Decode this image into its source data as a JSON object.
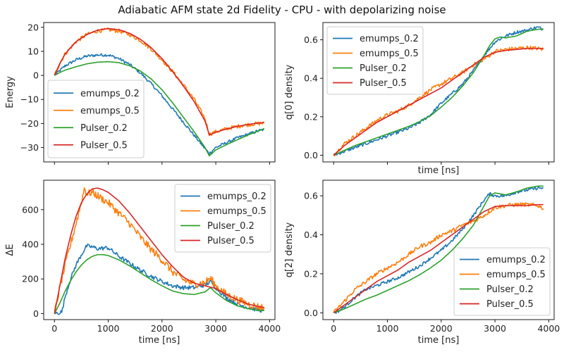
{
  "figure": {
    "title": "Adiabatic AFM state 2d Fidelity - CPU - with depolarizing noise"
  },
  "chart_data": [
    {
      "type": "line",
      "id": "energy",
      "title": "",
      "xlabel": "",
      "ylabel": "Energy",
      "xlim": [
        -200,
        4100
      ],
      "ylim": [
        -36,
        22
      ],
      "xticks": [
        0,
        1000,
        2000,
        3000,
        4000
      ],
      "xtick_labels": [],
      "yticks": [
        -30,
        -20,
        -10,
        0,
        10,
        20
      ],
      "ytick_labels": [
        "−30",
        "−20",
        "−10",
        "0",
        "10",
        "20"
      ],
      "legend": "lower-left",
      "series": [
        {
          "name": "emumps_0.2",
          "color": "#1f77b4",
          "noise": 0.6,
          "x": [
            0,
            100,
            200,
            400,
            600,
            800,
            1000,
            1200,
            1400,
            1600,
            1800,
            2000,
            2200,
            2400,
            2600,
            2800,
            2880,
            3000,
            3200,
            3400,
            3600,
            3800,
            3900
          ],
          "y": [
            0,
            2,
            4,
            6.5,
            8,
            8.5,
            8.5,
            7,
            4.5,
            1,
            -3.5,
            -8.5,
            -14,
            -19.5,
            -25,
            -30.5,
            -32.5,
            -30,
            -28,
            -26,
            -24.5,
            -23,
            -22.5
          ]
        },
        {
          "name": "emumps_0.5",
          "color": "#ff7f0e",
          "noise": 0.8,
          "x": [
            0,
            100,
            200,
            400,
            600,
            800,
            1000,
            1200,
            1400,
            1600,
            1800,
            2000,
            2200,
            2400,
            2600,
            2800,
            2880,
            3000,
            3200,
            3400,
            3600,
            3800,
            3900
          ],
          "y": [
            0,
            5,
            9,
            14,
            17,
            18.5,
            19,
            18.5,
            17,
            14.5,
            11,
            6.5,
            1.5,
            -4,
            -10,
            -18,
            -24.5,
            -23.5,
            -22.2,
            -21.2,
            -20.5,
            -20,
            -19.8
          ]
        },
        {
          "name": "Pulser_0.2",
          "color": "#2ca02c",
          "noise": 0,
          "x": [
            0,
            100,
            200,
            400,
            600,
            800,
            1000,
            1200,
            1400,
            1600,
            1800,
            2000,
            2200,
            2400,
            2600,
            2800,
            2880,
            3000,
            3200,
            3400,
            3600,
            3800,
            3900
          ],
          "y": [
            0,
            1.2,
            2.2,
            3.6,
            4.8,
            5.5,
            5.7,
            5.3,
            4,
            1.8,
            -1.5,
            -6,
            -11.5,
            -17.5,
            -23.5,
            -30,
            -33.5,
            -31,
            -28.8,
            -26.8,
            -24.8,
            -23,
            -22.2
          ]
        },
        {
          "name": "Pulser_0.5",
          "color": "#d62728",
          "noise": 0,
          "x": [
            0,
            100,
            200,
            400,
            600,
            800,
            1000,
            1200,
            1400,
            1600,
            1800,
            2000,
            2200,
            2400,
            2600,
            2800,
            2880,
            3000,
            3200,
            3400,
            3600,
            3800,
            3900
          ],
          "y": [
            0,
            5,
            9,
            14,
            17,
            18.8,
            19.5,
            19,
            17.5,
            15,
            11.5,
            7,
            1.5,
            -4.5,
            -11,
            -19,
            -24.8,
            -23.6,
            -22.3,
            -21.2,
            -20.4,
            -19.8,
            -19.6
          ]
        }
      ]
    },
    {
      "type": "line",
      "id": "q0",
      "title": "",
      "xlabel": "time [ns]",
      "ylabel": "q[0] density",
      "xlim": [
        -200,
        4100
      ],
      "ylim": [
        -0.035,
        0.69
      ],
      "xticks": [
        0,
        1000,
        2000,
        3000,
        4000
      ],
      "xtick_labels": [],
      "yticks": [
        0.0,
        0.2,
        0.4,
        0.6
      ],
      "ytick_labels": [
        "0.0",
        "0.2",
        "0.4",
        "0.6"
      ],
      "legend": "upper-left",
      "series": [
        {
          "name": "emumps_0.2",
          "color": "#1f77b4",
          "noise": 0.008,
          "x": [
            0,
            200,
            400,
            600,
            800,
            1000,
            1200,
            1400,
            1600,
            1800,
            2000,
            2200,
            2400,
            2600,
            2800,
            3000,
            3200,
            3400,
            3600,
            3700,
            3800,
            3900
          ],
          "y": [
            0,
            0.02,
            0.04,
            0.06,
            0.08,
            0.1,
            0.12,
            0.14,
            0.17,
            0.21,
            0.27,
            0.32,
            0.37,
            0.44,
            0.52,
            0.59,
            0.62,
            0.64,
            0.65,
            0.66,
            0.665,
            0.655
          ]
        },
        {
          "name": "emumps_0.5",
          "color": "#ff7f0e",
          "noise": 0.01,
          "x": [
            0,
            200,
            400,
            600,
            800,
            1000,
            1200,
            1400,
            1600,
            1800,
            2000,
            2200,
            2400,
            2600,
            2800,
            3000,
            3200,
            3400,
            3600,
            3800,
            3900
          ],
          "y": [
            0,
            0.06,
            0.1,
            0.14,
            0.18,
            0.21,
            0.23,
            0.26,
            0.3,
            0.34,
            0.37,
            0.4,
            0.43,
            0.47,
            0.5,
            0.54,
            0.55,
            0.555,
            0.56,
            0.555,
            0.55
          ]
        },
        {
          "name": "Pulser_0.2",
          "color": "#2ca02c",
          "noise": 0,
          "x": [
            0,
            200,
            400,
            600,
            800,
            1000,
            1200,
            1400,
            1600,
            1800,
            2000,
            2200,
            2400,
            2600,
            2800,
            2900,
            3000,
            3100,
            3200,
            3400,
            3600,
            3800,
            3900
          ],
          "y": [
            0,
            0.025,
            0.05,
            0.07,
            0.09,
            0.11,
            0.13,
            0.15,
            0.175,
            0.205,
            0.25,
            0.3,
            0.36,
            0.43,
            0.52,
            0.57,
            0.605,
            0.615,
            0.61,
            0.62,
            0.645,
            0.655,
            0.655
          ]
        },
        {
          "name": "Pulser_0.5",
          "color": "#d62728",
          "noise": 0,
          "x": [
            0,
            200,
            400,
            600,
            800,
            1000,
            1200,
            1400,
            1600,
            1800,
            2000,
            2200,
            2400,
            2600,
            2800,
            3000,
            3200,
            3400,
            3600,
            3800,
            3900
          ],
          "y": [
            0,
            0.05,
            0.09,
            0.13,
            0.17,
            0.2,
            0.23,
            0.26,
            0.29,
            0.32,
            0.35,
            0.39,
            0.43,
            0.47,
            0.51,
            0.535,
            0.545,
            0.55,
            0.555,
            0.555,
            0.555
          ]
        }
      ]
    },
    {
      "type": "line",
      "id": "deltaE",
      "title": "",
      "xlabel": "time [ns]",
      "ylabel": "ΔE",
      "xlim": [
        -200,
        4100
      ],
      "ylim": [
        -35,
        770
      ],
      "xticks": [
        0,
        1000,
        2000,
        3000,
        4000
      ],
      "xtick_labels": [
        "0",
        "1000",
        "2000",
        "3000",
        "4000"
      ],
      "yticks": [
        0,
        200,
        400,
        600
      ],
      "ytick_labels": [
        "0",
        "200",
        "400",
        "600"
      ],
      "legend": "upper-right",
      "series": [
        {
          "name": "emumps_0.2",
          "color": "#1f77b4",
          "noise": 12,
          "x": [
            0,
            80,
            140,
            200,
            300,
            400,
            500,
            600,
            700,
            800,
            1000,
            1200,
            1400,
            1600,
            1800,
            2000,
            2200,
            2400,
            2600,
            2800,
            2900,
            3000,
            3200,
            3400,
            3600,
            3800,
            3900
          ],
          "y": [
            0,
            5,
            10,
            100,
            200,
            280,
            340,
            390,
            385,
            375,
            380,
            330,
            290,
            250,
            215,
            185,
            160,
            150,
            150,
            165,
            185,
            150,
            90,
            55,
            35,
            20,
            18
          ]
        },
        {
          "name": "emumps_0.5",
          "color": "#ff7f0e",
          "noise": 22,
          "x": [
            0,
            100,
            200,
            300,
            400,
            500,
            560,
            600,
            700,
            800,
            1000,
            1200,
            1400,
            1600,
            1800,
            2000,
            2200,
            2400,
            2600,
            2800,
            2900,
            3000,
            3200,
            3400,
            3600,
            3800,
            3900
          ],
          "y": [
            0,
            150,
            280,
            400,
            520,
            640,
            730,
            690,
            700,
            680,
            640,
            580,
            520,
            440,
            370,
            310,
            240,
            195,
            170,
            180,
            205,
            160,
            110,
            80,
            55,
            38,
            35
          ]
        },
        {
          "name": "Pulser_0.2",
          "color": "#2ca02c",
          "noise": 0,
          "x": [
            0,
            100,
            200,
            300,
            400,
            500,
            600,
            700,
            800,
            900,
            1000,
            1200,
            1400,
            1600,
            1800,
            2000,
            2200,
            2400,
            2600,
            2800,
            2900,
            3000,
            3200,
            3400,
            3600,
            3800,
            3900
          ],
          "y": [
            0,
            60,
            130,
            190,
            240,
            280,
            310,
            330,
            340,
            340,
            335,
            310,
            275,
            235,
            195,
            160,
            130,
            115,
            110,
            125,
            150,
            120,
            75,
            45,
            28,
            18,
            17
          ]
        },
        {
          "name": "Pulser_0.5",
          "color": "#d62728",
          "noise": 0,
          "x": [
            0,
            100,
            200,
            300,
            400,
            500,
            600,
            700,
            800,
            900,
            1000,
            1200,
            1400,
            1600,
            1800,
            2000,
            2200,
            2400,
            2600,
            2800,
            3000,
            3200,
            3400,
            3600,
            3800,
            3900
          ],
          "y": [
            0,
            160,
            320,
            450,
            560,
            640,
            690,
            720,
            725,
            715,
            700,
            650,
            580,
            500,
            420,
            340,
            270,
            210,
            175,
            160,
            145,
            110,
            80,
            55,
            40,
            35
          ]
        }
      ]
    },
    {
      "type": "line",
      "id": "q2",
      "title": "",
      "xlabel": "time [ns]",
      "ylabel": "q[2] density",
      "xlim": [
        -200,
        4100
      ],
      "ylim": [
        -0.035,
        0.68
      ],
      "xticks": [
        0,
        1000,
        2000,
        3000,
        4000
      ],
      "xtick_labels": [
        "0",
        "1000",
        "2000",
        "3000",
        "4000"
      ],
      "yticks": [
        0.0,
        0.2,
        0.4,
        0.6
      ],
      "ytick_labels": [
        "0.0",
        "0.2",
        "0.4",
        "0.6"
      ],
      "legend": "lower-right",
      "series": [
        {
          "name": "emumps_0.2",
          "color": "#1f77b4",
          "noise": 0.008,
          "x": [
            0,
            100,
            200,
            400,
            600,
            800,
            1000,
            1200,
            1400,
            1600,
            1800,
            2000,
            2200,
            2400,
            2600,
            2800,
            2900,
            3000,
            3200,
            3400,
            3600,
            3800,
            3900
          ],
          "y": [
            0,
            0.01,
            0.03,
            0.08,
            0.12,
            0.14,
            0.16,
            0.18,
            0.21,
            0.24,
            0.28,
            0.32,
            0.37,
            0.43,
            0.5,
            0.58,
            0.61,
            0.6,
            0.6,
            0.62,
            0.63,
            0.64,
            0.64
          ]
        },
        {
          "name": "emumps_0.5",
          "color": "#ff7f0e",
          "noise": 0.01,
          "x": [
            0,
            100,
            200,
            400,
            600,
            800,
            1000,
            1200,
            1400,
            1600,
            1800,
            2000,
            2200,
            2400,
            2600,
            2800,
            3000,
            3200,
            3400,
            3600,
            3800,
            3900
          ],
          "y": [
            0,
            0.03,
            0.06,
            0.12,
            0.16,
            0.2,
            0.23,
            0.26,
            0.3,
            0.34,
            0.36,
            0.4,
            0.42,
            0.45,
            0.47,
            0.5,
            0.54,
            0.55,
            0.555,
            0.555,
            0.55,
            0.535
          ]
        },
        {
          "name": "Pulser_0.2",
          "color": "#2ca02c",
          "noise": 0,
          "x": [
            0,
            200,
            400,
            600,
            800,
            1000,
            1200,
            1400,
            1600,
            1800,
            2000,
            2200,
            2400,
            2600,
            2800,
            2900,
            3000,
            3100,
            3200,
            3400,
            3600,
            3800,
            3900
          ],
          "y": [
            0,
            0.02,
            0.045,
            0.07,
            0.09,
            0.115,
            0.14,
            0.165,
            0.195,
            0.23,
            0.27,
            0.32,
            0.38,
            0.45,
            0.55,
            0.6,
            0.615,
            0.61,
            0.605,
            0.62,
            0.64,
            0.65,
            0.65
          ]
        },
        {
          "name": "Pulser_0.5",
          "color": "#d62728",
          "noise": 0,
          "x": [
            0,
            200,
            400,
            600,
            800,
            1000,
            1200,
            1400,
            1600,
            1800,
            2000,
            2200,
            2400,
            2600,
            2800,
            3000,
            3200,
            3400,
            3600,
            3800,
            3900
          ],
          "y": [
            0,
            0.04,
            0.08,
            0.12,
            0.16,
            0.19,
            0.22,
            0.26,
            0.29,
            0.32,
            0.36,
            0.4,
            0.44,
            0.48,
            0.52,
            0.545,
            0.55,
            0.55,
            0.55,
            0.555,
            0.555
          ]
        }
      ]
    }
  ]
}
